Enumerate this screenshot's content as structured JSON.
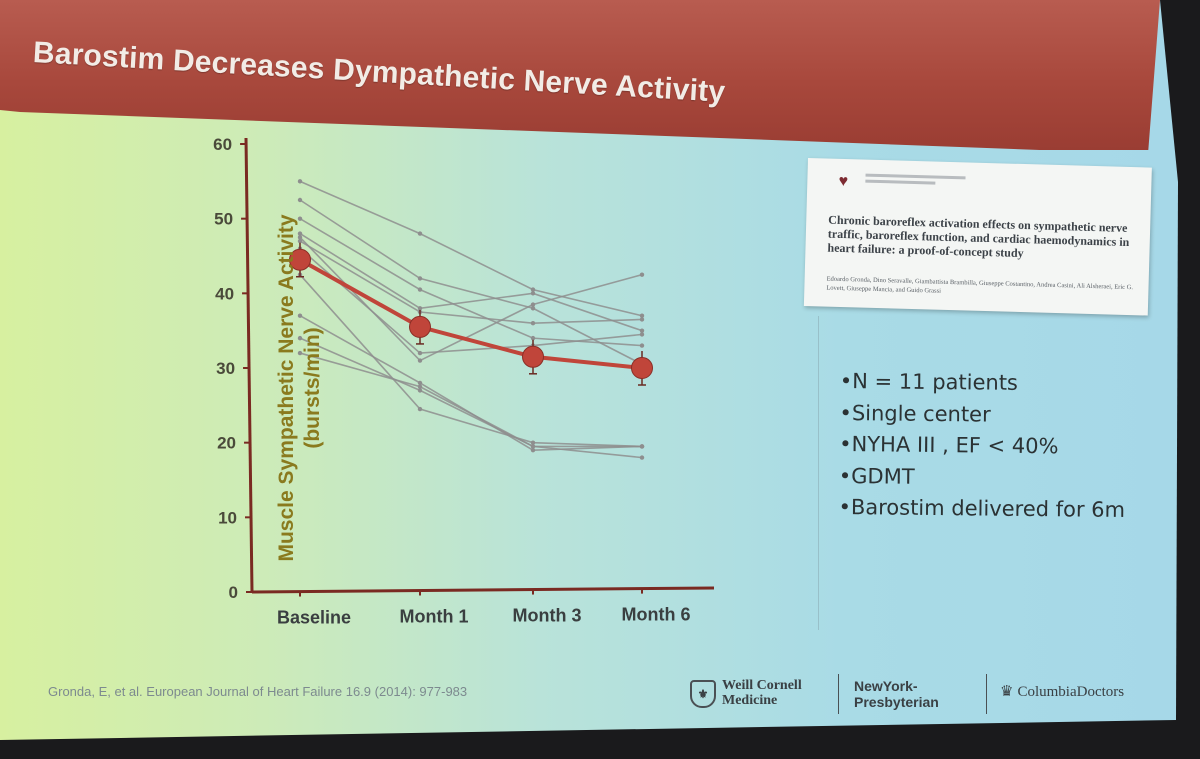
{
  "slide": {
    "title": "Barostim Decreases Dympathetic Nerve Activity",
    "citation": "Gronda, E, et al. European Journal of Heart Failure 16.9 (2014): 977-983",
    "colors": {
      "title_bar": "#a8483c",
      "mean_marker": "#c0453a",
      "individual_line": "#8e8e8e",
      "axis": "#7a2a22",
      "axis_title": "#8a7a1e"
    }
  },
  "chart_data": {
    "type": "line",
    "title": "",
    "ylabel_line1": "Muscle Sympathetic Nerve Activity",
    "ylabel_line2": "(bursts/min)",
    "xlabel": "",
    "categories": [
      "Baseline",
      "Month 1",
      "Month 3",
      "Month 6"
    ],
    "ylim": [
      0,
      60
    ],
    "yticks": [
      0,
      10,
      20,
      30,
      40,
      50,
      60
    ],
    "mean_series": {
      "name": "Mean",
      "values": [
        44.5,
        35.5,
        31.5,
        30
      ]
    },
    "individual_series": [
      {
        "name": "Patient 1",
        "values": [
          55,
          48,
          40.5,
          37
        ]
      },
      {
        "name": "Patient 2",
        "values": [
          52.5,
          42,
          38,
          30.5
        ]
      },
      {
        "name": "Patient 3",
        "values": [
          50,
          40.5,
          34,
          33
        ]
      },
      {
        "name": "Patient 4",
        "values": [
          48,
          38,
          40,
          35
        ]
      },
      {
        "name": "Patient 5",
        "values": [
          47.5,
          31,
          38.5,
          42.5
        ]
      },
      {
        "name": "Patient 6",
        "values": [
          47,
          37.5,
          36,
          36.5
        ]
      },
      {
        "name": "Patient 7",
        "values": [
          46,
          32,
          33,
          34.5
        ]
      },
      {
        "name": "Patient 8",
        "values": [
          42.5,
          24.5,
          20,
          19.5
        ]
      },
      {
        "name": "Patient 9",
        "values": [
          37,
          28,
          19,
          19.5
        ]
      },
      {
        "name": "Patient 10",
        "values": [
          34,
          27,
          19.5,
          18
        ]
      },
      {
        "name": "Patient 11",
        "values": [
          32,
          27.5,
          19.5,
          19.5
        ]
      }
    ]
  },
  "paper": {
    "title": "Chronic baroreflex activation effects on sympathetic nerve traffic, baroreflex function, and cardiac haemodynamics in heart failure: a proof-of-concept study",
    "authors": "Edoardo Gronda, Dino Seravalle, Giambattista Brambilla, Giuseppe Costantino, Andrea Casini, Ali Alsheraei, Eric G. Lovett, Giuseppe Mancia, and Guido Grassi"
  },
  "bullets": [
    "N = 11 patients",
    "Single center",
    "NYHA III , EF < 40%",
    "GDMT",
    "Barostim delivered for 6m"
  ],
  "logos": {
    "weill_line1": "Weill Cornell",
    "weill_line2": "Medicine",
    "nyp_line1": "NewYork-",
    "nyp_line2": "Presbyterian",
    "columbia": "ColumbiaDoctors"
  }
}
